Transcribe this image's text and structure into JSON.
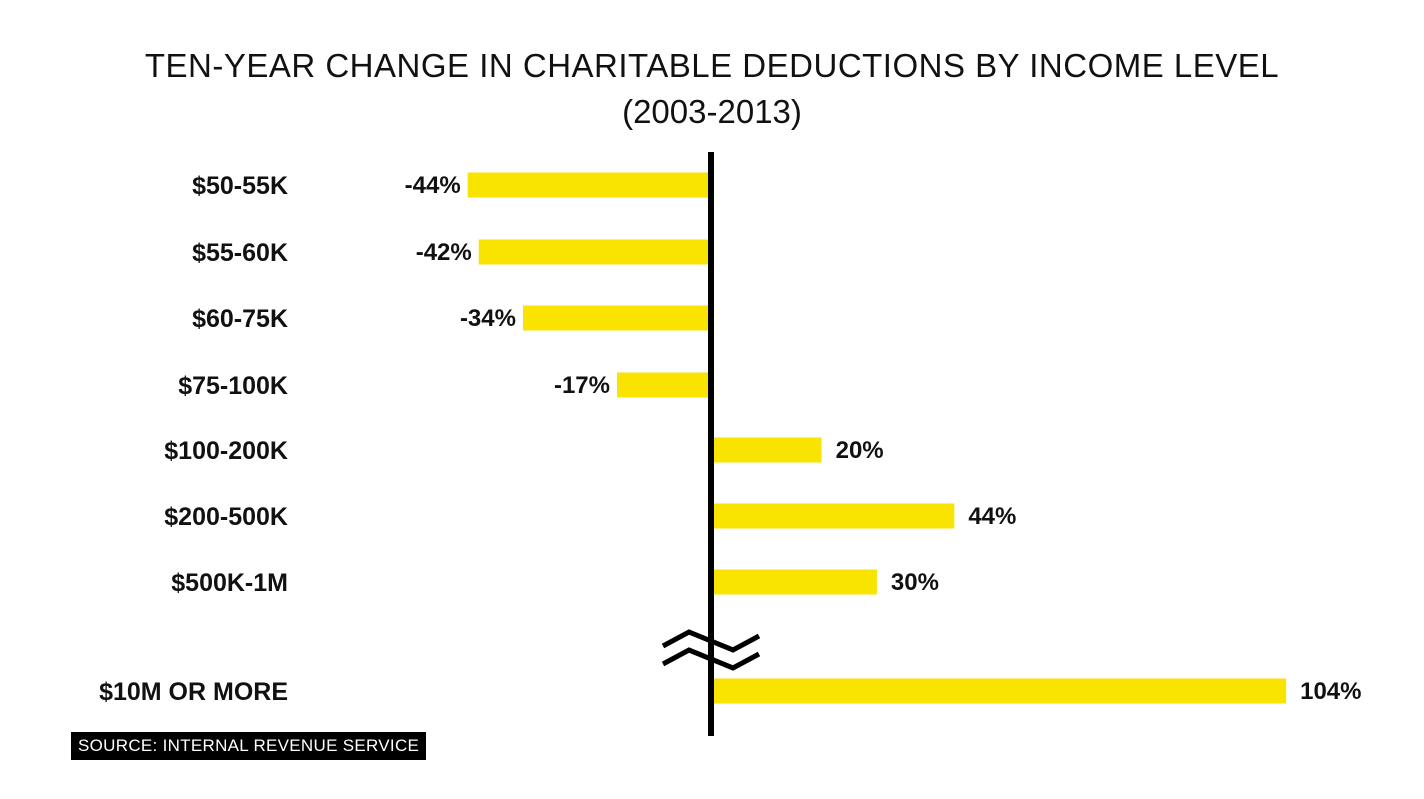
{
  "chart_data": {
    "type": "bar",
    "orientation": "horizontal",
    "title": "TEN-YEAR CHANGE IN CHARITABLE DEDUCTIONS BY INCOME LEVEL",
    "subtitle": "(2003-2013)",
    "categories": [
      "$50-55K",
      "$55-60K",
      "$60-75K",
      "$75-100K",
      "$100-200K",
      "$200-500K",
      "$500K-1M",
      "$10M OR MORE"
    ],
    "values": [
      -44,
      -42,
      -34,
      -17,
      20,
      44,
      30,
      104
    ],
    "value_labels": [
      "-44%",
      "-42%",
      "-34%",
      "-17%",
      "20%",
      "44%",
      "30%",
      "104%"
    ],
    "axis_break_before": "$10M OR MORE",
    "bar_color": "#f9e300",
    "axis_color": "#000000",
    "grid": false,
    "legend": "none"
  },
  "source": "SOURCE: INTERNAL REVENUE SERVICE"
}
